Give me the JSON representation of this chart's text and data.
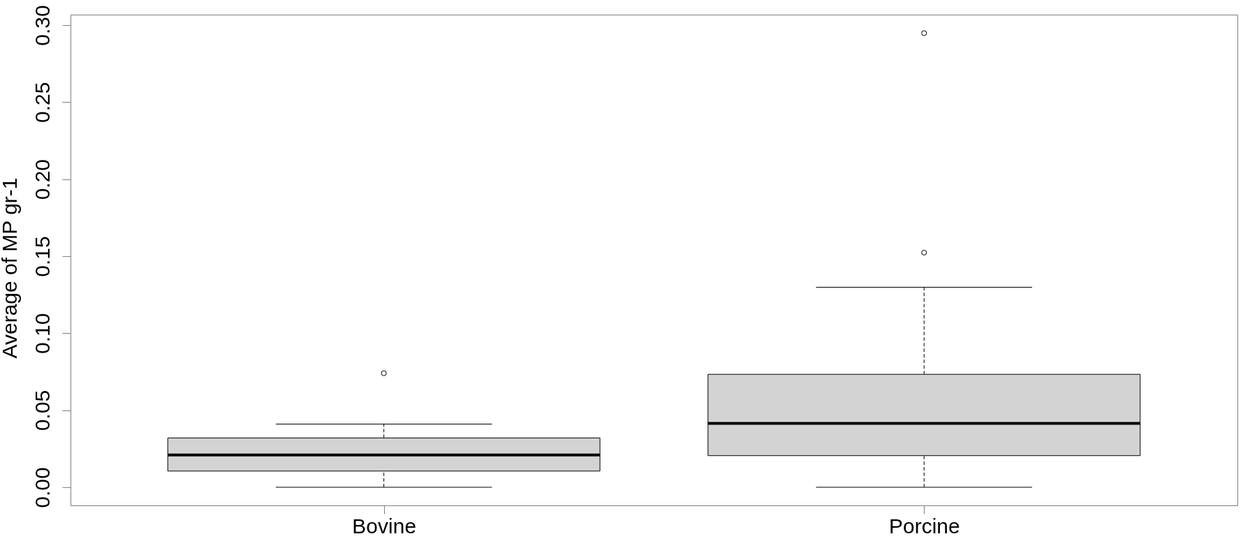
{
  "chart_data": {
    "type": "box",
    "ylabel": "Average of MP gr-1",
    "categories": [
      "Bovine",
      "Porcine"
    ],
    "color": "#d3d3d3",
    "boxes": [
      {
        "low": 0,
        "q1": 0.0105,
        "median": 0.021,
        "q3": 0.032,
        "high": 0.041,
        "outliers": [
          0.074
        ]
      },
      {
        "low": 0,
        "q1": 0.0205,
        "median": 0.0414,
        "q3": 0.0733,
        "high": 0.1298,
        "outliers": [
          0.1523,
          0.2948
        ]
      }
    ],
    "ylim": [
      -0.0118,
      0.3068
    ],
    "yticks": [
      {
        "value": 0,
        "label": "0.00"
      },
      {
        "value": 0.05,
        "label": "0.05"
      },
      {
        "value": 0.1,
        "label": "0.10"
      },
      {
        "value": 0.15,
        "label": "0.15"
      },
      {
        "value": 0.2,
        "label": "0.20"
      },
      {
        "value": 0.25,
        "label": "0.25"
      },
      {
        "value": 0.3,
        "label": "0.30"
      }
    ]
  }
}
